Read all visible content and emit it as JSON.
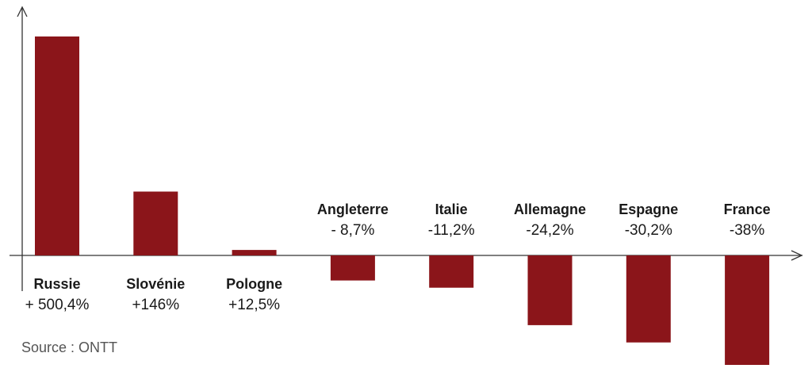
{
  "chart_data": {
    "type": "bar",
    "categories": [
      "Russie",
      "Slovénie",
      "Pologne",
      "Angleterre",
      "Italie",
      "Allemagne",
      "Espagne",
      "France"
    ],
    "values": [
      500.4,
      146,
      12.5,
      -8.7,
      -11.2,
      -24.2,
      -30.2,
      -38
    ],
    "value_labels": [
      "+ 500,4%",
      "+146%",
      "+12,5%",
      "- 8,7%",
      "-11,2%",
      "-24,2%",
      "-30,2%",
      "-38%"
    ],
    "title": "",
    "xlabel": "",
    "ylabel": "",
    "bar_color": "#8b151a",
    "grid": false,
    "legend": "none"
  },
  "source": "Source : ONTT"
}
